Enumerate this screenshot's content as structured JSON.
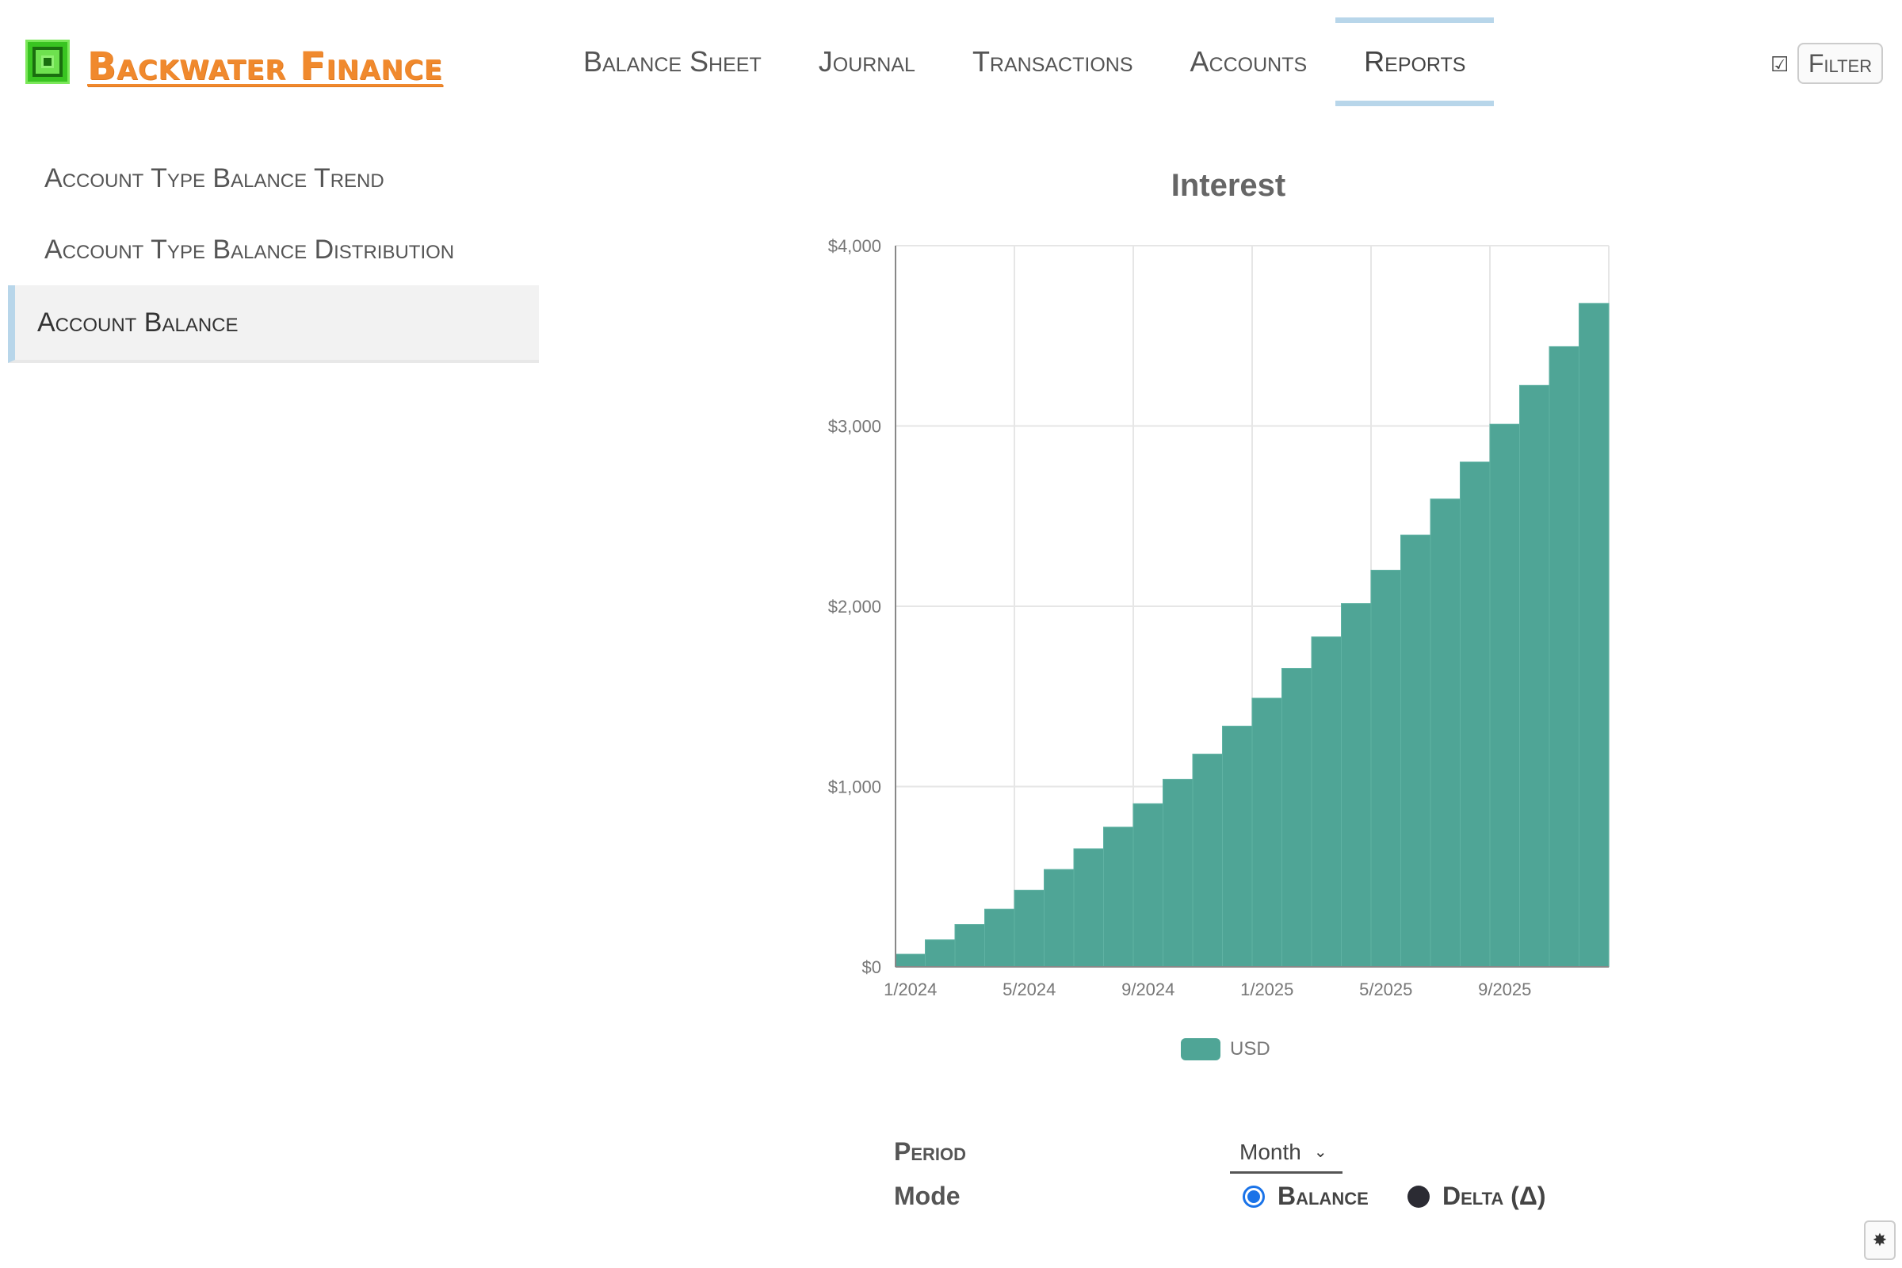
{
  "app": {
    "title": "Backwater Finance"
  },
  "nav": {
    "tabs": [
      {
        "label": "Balance Sheet",
        "active": false
      },
      {
        "label": "Journal",
        "active": false
      },
      {
        "label": "Transactions",
        "active": false
      },
      {
        "label": "Accounts",
        "active": false
      },
      {
        "label": "Reports",
        "active": true
      }
    ],
    "filter_check": "☑",
    "filter_label": "Filter"
  },
  "sidebar": {
    "items": [
      {
        "label": "Account Type Balance Trend",
        "active": false
      },
      {
        "label": "Account Type Balance Distribution",
        "active": false
      },
      {
        "label": "Account Balance",
        "active": true
      }
    ]
  },
  "colors": {
    "accent": "#b8d6ea",
    "bar": "#4fa596",
    "title": "#f0892d",
    "radio": "#1a73e8"
  },
  "chart_data": {
    "type": "bar",
    "title": "Interest",
    "xlabel": "",
    "ylabel": "",
    "x_tick_labels": [
      "1/2024",
      "5/2024",
      "9/2024",
      "1/2025",
      "5/2025",
      "9/2025"
    ],
    "y_tick_labels": [
      "$0",
      "$1,000",
      "$2,000",
      "$3,000",
      "$4,000"
    ],
    "ylim": [
      0,
      4000
    ],
    "grid": true,
    "legend": "bottom-center",
    "categories": [
      "1/2024",
      "2/2024",
      "3/2024",
      "4/2024",
      "5/2024",
      "6/2024",
      "7/2024",
      "8/2024",
      "9/2024",
      "10/2024",
      "11/2024",
      "12/2024",
      "1/2025",
      "2/2025",
      "3/2025",
      "4/2025",
      "5/2025",
      "6/2025",
      "7/2025",
      "8/2025",
      "9/2025",
      "10/2025",
      "11/2025",
      "12/2025"
    ],
    "series": [
      {
        "name": "USD",
        "values": [
          70,
          150,
          235,
          320,
          425,
          540,
          655,
          775,
          905,
          1040,
          1180,
          1335,
          1490,
          1655,
          1830,
          2015,
          2200,
          2395,
          2595,
          2800,
          3010,
          3225,
          3440,
          3680
        ]
      }
    ]
  },
  "controls": {
    "period_label": "Period",
    "period_value": "Month",
    "mode_label": "Mode",
    "mode_options": [
      {
        "label": "Balance",
        "selected": true
      },
      {
        "label": "Delta (Δ)",
        "selected": false
      }
    ]
  },
  "settings_icon": "✸"
}
